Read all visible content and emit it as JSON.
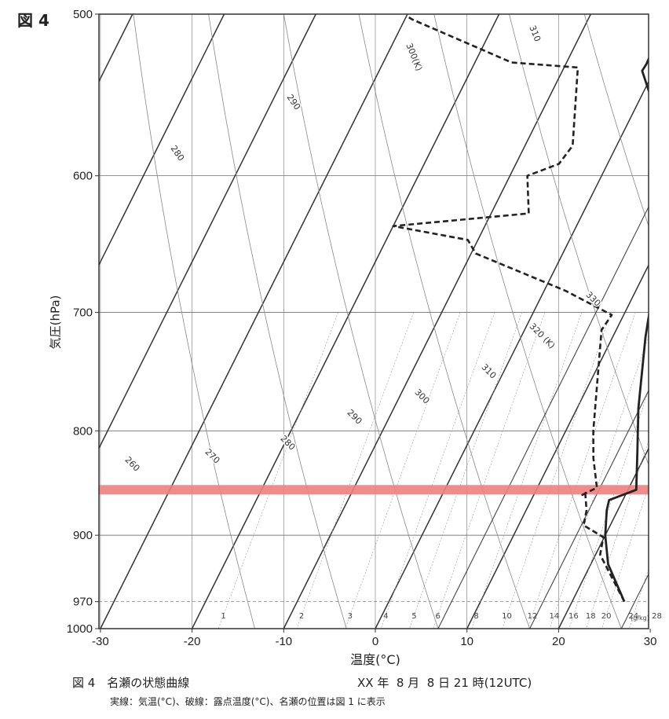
{
  "figure_label": "図 4",
  "caption": {
    "title": "図 4　名瀬の状態曲線",
    "date": "XX 年  8 月  8 日 21 時(12UTC)",
    "note": "実線：気温(°C)、破線：露点温度(°C)、名瀬の位置は図 1 に表示"
  },
  "chart_data": {
    "type": "line",
    "xlabel": "温度(°C)",
    "ylabel": "気圧(hPa)",
    "xlim": [
      -30,
      30
    ],
    "x_ticks": [
      -30,
      -20,
      -10,
      0,
      10,
      20,
      30
    ],
    "x_tick_labels": [
      "-30",
      "-20",
      "-10",
      "0",
      "10",
      "20",
      "30"
    ],
    "y_scale": "log",
    "ylim": [
      1000,
      500
    ],
    "y_ticks": [
      500,
      600,
      700,
      800,
      900,
      970,
      1000
    ],
    "y_tick_labels": [
      "500",
      "600",
      "700",
      "800",
      "900",
      "970",
      "1000"
    ],
    "grid": true,
    "highlight_band_hpa": 855,
    "highlight_color": "#f08080",
    "series": [
      {
        "style": "solid",
        "points": [
          [
            25.7,
            970
          ],
          [
            21.9,
            930
          ],
          [
            20.0,
            900
          ],
          [
            18.8,
            875
          ],
          [
            18.5,
            865
          ],
          [
            20.9,
            855
          ],
          [
            19.0,
            820
          ],
          [
            16.7,
            780
          ],
          [
            13.6,
            720
          ],
          [
            12.9,
            705
          ],
          [
            11.0,
            660
          ],
          [
            10.4,
            640
          ],
          [
            10.3,
            635
          ],
          [
            6.8,
            600
          ],
          [
            6.8,
            595
          ],
          [
            5.9,
            583
          ],
          [
            -1.3,
            533
          ],
          [
            -1.2,
            529
          ],
          [
            -1.4,
            510
          ],
          [
            -1.9,
            500
          ]
        ]
      },
      {
        "style": "dashed",
        "points": [
          [
            25.7,
            970
          ],
          [
            20.5,
            920
          ],
          [
            19.9,
            902
          ],
          [
            17.1,
            890
          ],
          [
            16.6,
            875
          ],
          [
            15.5,
            858
          ],
          [
            15.3,
            860
          ],
          [
            16.5,
            853
          ],
          [
            14.5,
            825
          ],
          [
            13.0,
            800
          ],
          [
            8.4,
            714
          ],
          [
            8.7,
            702
          ],
          [
            2.3,
            683
          ],
          [
            -9.5,
            655
          ],
          [
            -11.1,
            645
          ],
          [
            -20.0,
            635
          ],
          [
            -5.9,
            626
          ],
          [
            -8.1,
            600
          ],
          [
            -5.3,
            592
          ],
          [
            -4.8,
            580
          ],
          [
            -8.5,
            531
          ],
          [
            -16.0,
            528
          ],
          [
            -29.2,
            503
          ],
          [
            -30.0,
            501
          ]
        ]
      }
    ],
    "isotherms_c": [
      -70,
      -60,
      -50,
      -40,
      -30,
      -20,
      -10,
      0,
      10,
      20,
      30
    ],
    "dry_adiabats_k": [
      260,
      270,
      280,
      290,
      300,
      310,
      320,
      330
    ],
    "dry_adiabat_labels": [
      "260",
      "270",
      "280",
      "290",
      "300",
      "310",
      "320",
      "330",
      "280",
      "290",
      "300(K)",
      "310",
      "320 (K)"
    ],
    "moist_adiabats_k": [
      280,
      290,
      300,
      310,
      320
    ],
    "mixing_ratio_unit": "(g/kg)",
    "mixing_ratios_gkg": [
      1,
      2,
      3,
      4,
      5,
      6,
      8,
      10,
      12,
      14,
      16,
      18,
      20,
      24,
      28
    ]
  }
}
